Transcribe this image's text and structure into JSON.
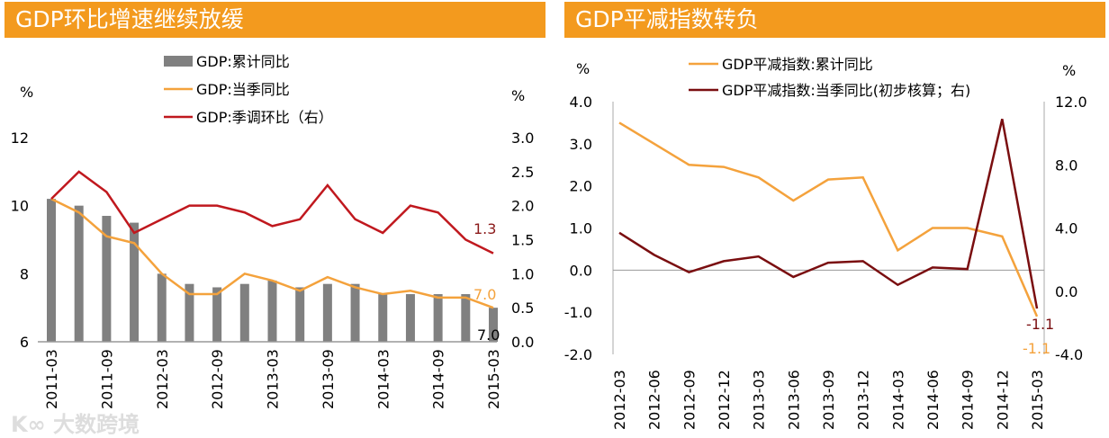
{
  "colors": {
    "banner": "#F39A1E",
    "bar": "#808080",
    "orange": "#F4A23C",
    "red": "#C0181E",
    "darkred": "#7A0E10"
  },
  "watermark": "大数跨境",
  "chart_data": [
    {
      "type": "bar+line",
      "title": "GDP环比增速继续放缓",
      "left_unit": "%",
      "right_unit": "%",
      "ylim": [
        6,
        12
      ],
      "yticks": [
        "6",
        "8",
        "10",
        "12"
      ],
      "y2lim": [
        0,
        3
      ],
      "y2ticks": [
        "0.0",
        "0.5",
        "1.0",
        "1.5",
        "2.0",
        "2.5",
        "3.0"
      ],
      "categories": [
        "2011-03",
        "2011-06",
        "2011-09",
        "2011-12",
        "2012-03",
        "2012-06",
        "2012-09",
        "2012-12",
        "2013-03",
        "2013-06",
        "2013-09",
        "2013-12",
        "2014-03",
        "2014-06",
        "2014-09",
        "2014-12",
        "2015-03"
      ],
      "xtick_labels": [
        "2011-03",
        "2011-09",
        "2012-03",
        "2012-09",
        "2013-03",
        "2013-09",
        "2014-03",
        "2014-09",
        "2015-03"
      ],
      "legend": [
        "GDP:累计同比",
        "GDP:当季同比",
        "GDP:季调环比（右）"
      ],
      "series": [
        {
          "name": "GDP:累计同比",
          "kind": "bar",
          "axis": "left",
          "values": [
            10.2,
            10.0,
            9.7,
            9.5,
            8.0,
            7.7,
            7.6,
            7.7,
            7.8,
            7.6,
            7.7,
            7.7,
            7.4,
            7.4,
            7.4,
            7.4,
            7.0
          ]
        },
        {
          "name": "GDP:当季同比",
          "kind": "line",
          "axis": "left",
          "values": [
            10.2,
            9.8,
            9.1,
            8.9,
            8.0,
            7.4,
            7.4,
            8.0,
            7.8,
            7.5,
            7.9,
            7.6,
            7.4,
            7.5,
            7.3,
            7.3,
            7.0
          ]
        },
        {
          "name": "GDP:季调环比（右）",
          "kind": "line",
          "axis": "right",
          "values": [
            2.1,
            2.5,
            2.2,
            1.6,
            1.8,
            2.0,
            2.0,
            1.9,
            1.7,
            1.8,
            2.3,
            1.8,
            1.6,
            2.0,
            1.9,
            1.5,
            1.3
          ]
        }
      ],
      "annotations": [
        "1.3",
        "7.0",
        "7.0"
      ]
    },
    {
      "type": "line",
      "title": "GDP平减指数转负",
      "left_unit": "%",
      "right_unit": "%",
      "ylim": [
        -2,
        4
      ],
      "yticks": [
        "-2.0",
        "-1.0",
        "0.0",
        "1.0",
        "2.0",
        "3.0",
        "4.0"
      ],
      "y2lim": [
        -4,
        12
      ],
      "y2ticks": [
        "-4.0",
        "0.0",
        "4.0",
        "8.0",
        "12.0"
      ],
      "categories": [
        "2012-03",
        "2012-06",
        "2012-09",
        "2012-12",
        "2013-03",
        "2013-06",
        "2013-09",
        "2013-12",
        "2014-03",
        "2014-06",
        "2014-09",
        "2014-12",
        "2015-03"
      ],
      "legend": [
        "GDP平减指数:累计同比",
        "GDP平减指数:当季同比(初步核算；右)"
      ],
      "series": [
        {
          "name": "GDP平减指数:累计同比",
          "axis": "left",
          "values": [
            3.5,
            3.0,
            2.5,
            2.45,
            2.2,
            1.65,
            2.15,
            2.2,
            0.47,
            1.0,
            1.0,
            0.8,
            -1.1
          ]
        },
        {
          "name": "GDP平减指数:当季同比(初步核算；右)",
          "axis": "right",
          "values": [
            3.7,
            2.3,
            1.2,
            1.9,
            2.2,
            0.9,
            1.8,
            1.9,
            0.4,
            1.5,
            1.4,
            10.9,
            -1.1
          ]
        }
      ],
      "annotations": [
        "-1.1",
        "-1.1"
      ]
    }
  ]
}
